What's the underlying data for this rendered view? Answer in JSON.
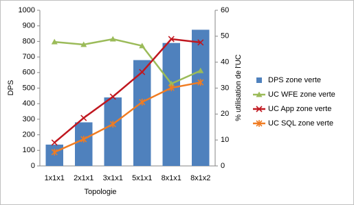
{
  "chart_data": {
    "type": "bar",
    "categories": [
      "1x1x1",
      "2x1x1",
      "3x1x1",
      "5x1x1",
      "8x1x1",
      "8x1x2"
    ],
    "x_label": "Topologie",
    "y_label": "DPS",
    "y2_label": "% utilisation de l'UC",
    "ylim": [
      0,
      1000
    ],
    "yticks": [
      0,
      100,
      200,
      300,
      400,
      500,
      600,
      700,
      800,
      900,
      1000
    ],
    "y2lim": [
      0,
      60
    ],
    "y2ticks": [
      0,
      10,
      20,
      30,
      40,
      50,
      60
    ],
    "legend": "right",
    "series": [
      {
        "name": "DPS zone verte",
        "type": "bar",
        "color": "#4f81bd",
        "values": [
          137,
          280,
          440,
          680,
          790,
          875
        ]
      },
      {
        "name": "UC WFE zone verte",
        "type": "line",
        "marker": "triangle",
        "axis": "y2",
        "color": "#9bbb59",
        "values": [
          47.8,
          46.8,
          48.9,
          46.3,
          31.7,
          36.7
        ]
      },
      {
        "name": "UC App zone verte",
        "type": "line",
        "marker": "x",
        "axis": "y2",
        "color": "#c0171f",
        "values": [
          9,
          18.5,
          26.7,
          36.2,
          48.9,
          47.6
        ]
      },
      {
        "name": "UC SQL zone verte",
        "type": "line",
        "marker": "star",
        "axis": "y2",
        "color": "#f07c22",
        "values": [
          5.3,
          10.3,
          16.1,
          24.6,
          30.1,
          32.2
        ]
      }
    ]
  }
}
